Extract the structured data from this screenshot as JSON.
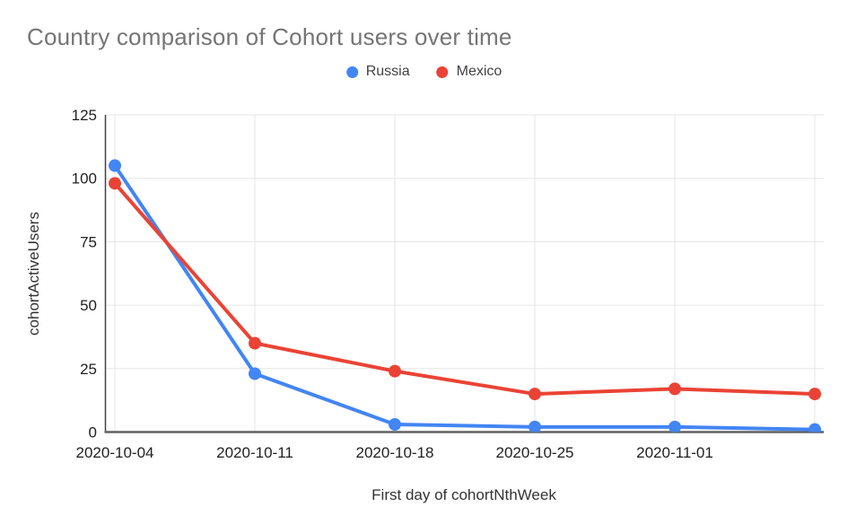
{
  "page": {
    "background": "#ffffff"
  },
  "chart_data": {
    "type": "line",
    "title": "Country comparison of Cohort users over time",
    "xlabel": "First day of cohortNthWeek",
    "ylabel": "cohortActiveUsers",
    "categories": [
      "2020-10-04",
      "2020-10-11",
      "2020-10-18",
      "2020-10-25",
      "2020-11-01",
      ""
    ],
    "series": [
      {
        "name": "Russia",
        "color": "#4285F4",
        "values": [
          105,
          23,
          3,
          2,
          2,
          1
        ]
      },
      {
        "name": "Mexico",
        "color": "#EA4335",
        "values": [
          98,
          35,
          24,
          15,
          17,
          15
        ]
      }
    ],
    "ylim": [
      0,
      125
    ],
    "yticks": [
      0,
      25,
      50,
      75,
      100,
      125
    ],
    "grid": true,
    "legend_position": "top-center",
    "colors": {
      "title_text": "#757575",
      "axis_text": "#212121",
      "gridline": "#e6e6e6",
      "y_axis_line": "#424242",
      "x_axis_line": "#616161"
    }
  }
}
